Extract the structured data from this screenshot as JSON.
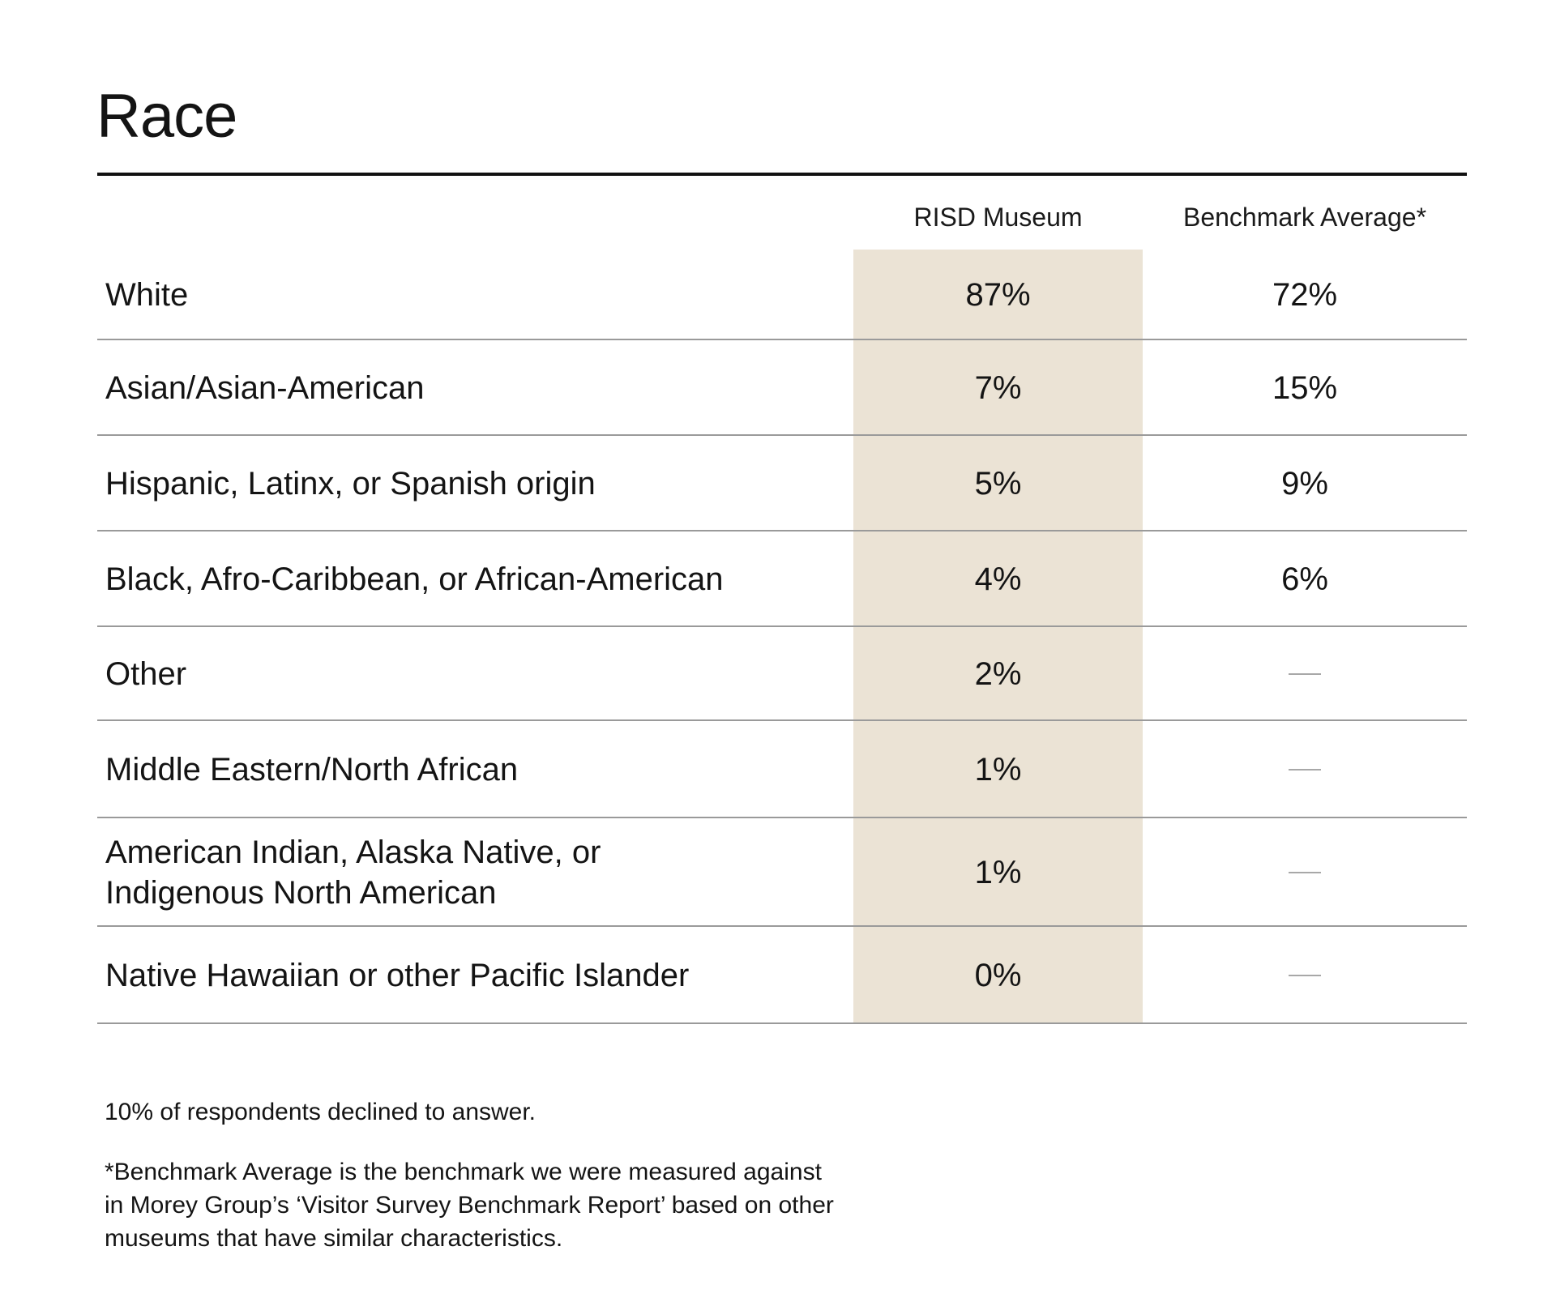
{
  "title": "Race",
  "columns": {
    "risd": "RISD Museum",
    "benchmark": "Benchmark Average*"
  },
  "colors": {
    "highlight": "#ebe3d5",
    "rule": "#9a9a9a",
    "title_rule": "#111111"
  },
  "chart_data": {
    "type": "table",
    "title": "Race",
    "columns": [
      "RISD Museum",
      "Benchmark Average*"
    ],
    "rows": [
      {
        "label": "White",
        "risd": "87%",
        "benchmark": "72%"
      },
      {
        "label": "Asian/Asian-American",
        "risd": "7%",
        "benchmark": "15%"
      },
      {
        "label": "Hispanic, Latinx, or Spanish origin",
        "risd": "5%",
        "benchmark": "9%"
      },
      {
        "label": "Black, Afro-Caribbean, or African-American",
        "risd": "4%",
        "benchmark": "6%"
      },
      {
        "label": "Other",
        "risd": "2%",
        "benchmark": null
      },
      {
        "label": "Middle Eastern/North African",
        "risd": "1%",
        "benchmark": null
      },
      {
        "label": "American Indian, Alaska Native, or Indigenous North American",
        "risd": "1%",
        "benchmark": null
      },
      {
        "label": "Native Hawaiian or other Pacific Islander",
        "risd": "0%",
        "benchmark": null
      }
    ]
  },
  "notes": {
    "declined": "10% of respondents declined to answer.",
    "footnote_lines": [
      "*Benchmark Average is the benchmark we were measured against",
      "in Morey Group’s ‘Visitor Survey Benchmark Report’ based on other",
      "museums that have similar characteristics."
    ]
  }
}
